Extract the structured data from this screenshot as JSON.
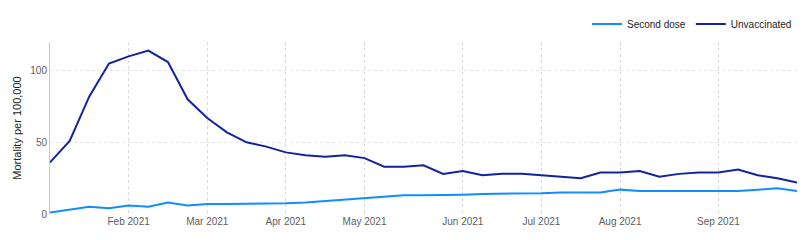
{
  "chart_data": {
    "type": "line",
    "y_label": "Mortality per 100,000",
    "categories": [
      null,
      null,
      null,
      null,
      "Feb 2021",
      null,
      null,
      null,
      "Mar 2021",
      null,
      null,
      null,
      "Apr 2021",
      null,
      null,
      null,
      "May 2021",
      null,
      null,
      null,
      null,
      "Jun 2021",
      null,
      null,
      null,
      "Jul 2021",
      null,
      null,
      null,
      "Aug 2021",
      null,
      null,
      null,
      null,
      "Sep 2021",
      null,
      null,
      null,
      null
    ],
    "series": [
      {
        "name": "Second dose",
        "color": "#118dff",
        "values": [
          1,
          3,
          5,
          4,
          6,
          5,
          8,
          6,
          7,
          7,
          7,
          7,
          7.5,
          8,
          9,
          10,
          11,
          12,
          13,
          13,
          13,
          13.5,
          14,
          14,
          14,
          14.5,
          15,
          15,
          15,
          17,
          16,
          16,
          16,
          16,
          16.5,
          16,
          17,
          18,
          16
        ]
      },
      {
        "name": "Unvaccinated",
        "color": "#12239e",
        "values": [
          36,
          51,
          82,
          105,
          110,
          114,
          106,
          80,
          67,
          57,
          50,
          47,
          43,
          41,
          40,
          41,
          39,
          33,
          33,
          34,
          28,
          30,
          27,
          28,
          28,
          27,
          26,
          25,
          29,
          29,
          30,
          26,
          28,
          29,
          29,
          31,
          27,
          25,
          22
        ]
      }
    ],
    "ylim": [
      0,
      120
    ],
    "yticks": [
      0,
      50,
      100
    ],
    "grid": true,
    "legend": "top-right"
  }
}
